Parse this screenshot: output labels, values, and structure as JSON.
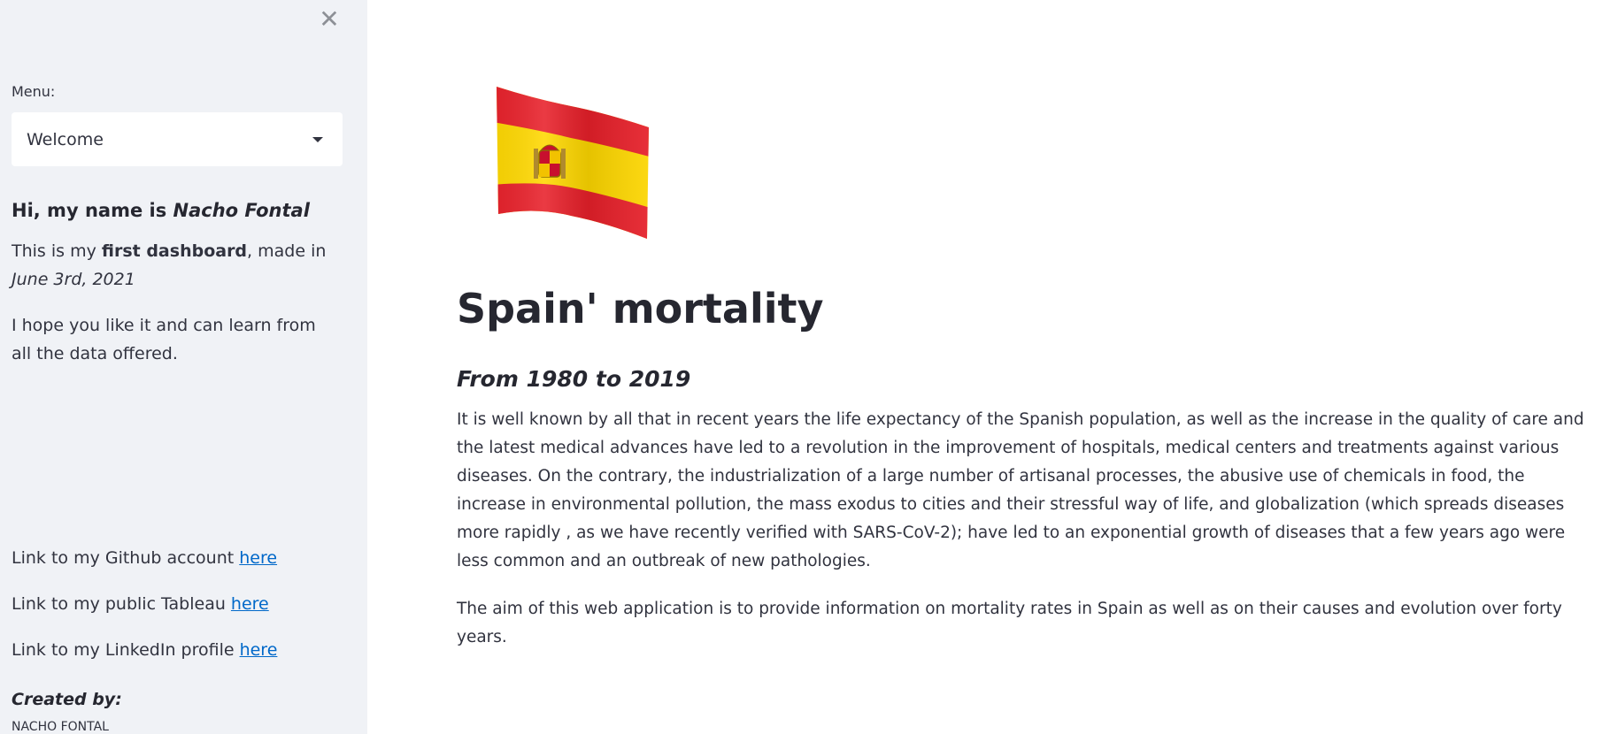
{
  "sidebar": {
    "close_icon": "close-icon",
    "menu_label": "Menu:",
    "select_value": "Welcome",
    "greeting_prefix": "Hi, my name is ",
    "greeting_name": "Nacho Fontal",
    "intro_prefix": "This is my ",
    "intro_bold": "first dashboard",
    "intro_middle": ", made in ",
    "intro_date": "June 3rd, 2021",
    "hope_text": "I hope you like it and can learn from all the data offered.",
    "links": [
      {
        "prefix": "Link to my Github account ",
        "link_text": "here"
      },
      {
        "prefix": "Link to my public Tableau ",
        "link_text": "here"
      },
      {
        "prefix": "Link to my LinkedIn profile ",
        "link_text": "here"
      }
    ],
    "created_by_label": "Created by:",
    "author": "NACHO FONTAL"
  },
  "main": {
    "flag_icon": "spain-flag-icon",
    "title": "Spain' mortality",
    "subtitle": "From 1980 to 2019",
    "paragraph1": "It is well known by all that in recent years the life expectancy of the Spanish population, as well as the increase in the quality of care and the latest medical advances have led to a revolution in the improvement of hospitals, medical centers and treatments against various diseases. On the contrary, the industrialization of a large number of artisanal processes, the abusive use of chemicals in food, the increase in environmental pollution, the mass exodus to cities and their stressful way of life, and globalization (which spreads diseases more rapidly , as we have recently verified with SARS-CoV-2); have led to an exponential growth of diseases that a few years ago were less common and an outbreak of new pathologies.",
    "paragraph2": "The aim of this web application is to provide information on mortality rates in Spain as well as on their causes and evolution over forty years."
  },
  "colors": {
    "sidebar_bg": "#f0f2f6",
    "link": "#0068c9",
    "flag_red": "#e8202a",
    "flag_yellow": "#ffd800"
  }
}
